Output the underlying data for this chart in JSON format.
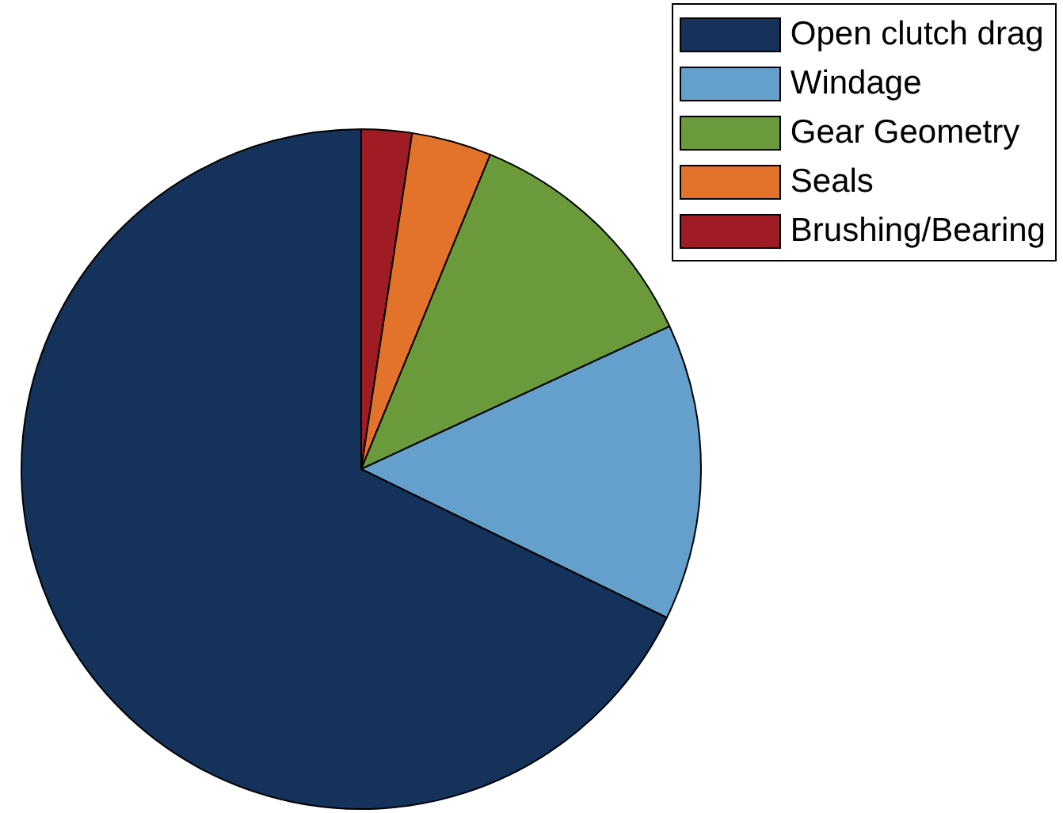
{
  "chart_data": {
    "type": "pie",
    "categories": [
      "Open clutch drag",
      "Windage",
      "Gear Geometry",
      "Seals",
      "Brushing/Bearing"
    ],
    "values": [
      67.8,
      14.1,
      11.9,
      3.8,
      2.4
    ],
    "colors": [
      "#14325a",
      "#64a0cb",
      "#6a9a3a",
      "#e3722a",
      "#a01c24"
    ],
    "legend": "top right"
  }
}
